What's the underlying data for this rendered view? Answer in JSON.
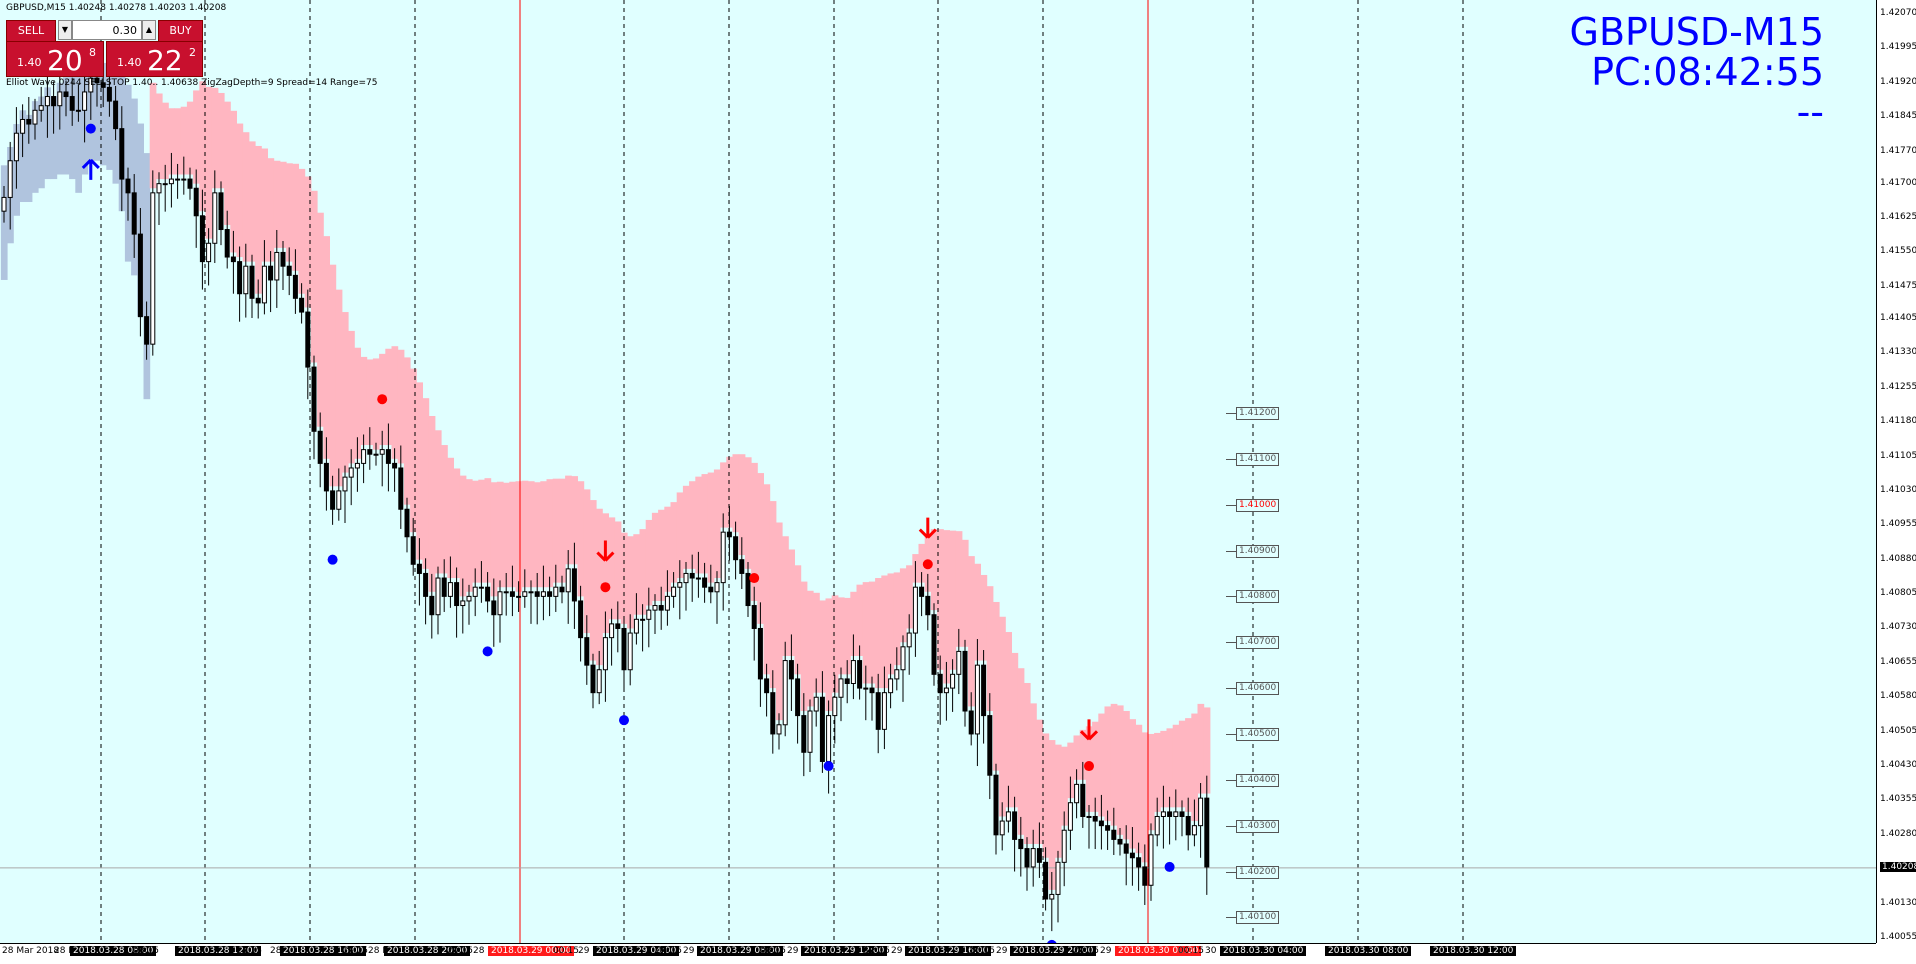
{
  "header": {
    "symbol_line": "GBPUSD,M15  1.40248 1.40278 1.40203 1.40208",
    "indicator_line": "Elliot Wave  0244  SELLSTOP  1.40..  1.40638  ZigZagDepth=9  Spread=14  Range=75"
  },
  "trade_panel": {
    "sell_label": "SELL",
    "buy_label": "BUY",
    "lot": "0.30",
    "sell_small": "1.40",
    "sell_big": "20",
    "sell_sup": "8",
    "buy_small": "1.40",
    "buy_big": "22",
    "buy_sup": "2"
  },
  "overlay": {
    "line1": "GBPUSD-M15",
    "line2": "PC:08:42:55",
    "line3": "--"
  },
  "colors": {
    "background": "#e0ffff",
    "bull_candle": "#ffffff",
    "bear_candle": "#000000",
    "cloud_down": "#ffb6c1",
    "cloud_up": "#b0c4de",
    "marker_red": "#ff0000",
    "marker_blue": "#0000ff",
    "title_blue": "#0000ff"
  },
  "price_axis": {
    "labels": [
      "1.42070",
      "1.41995",
      "1.41920",
      "1.41845",
      "1.41770",
      "1.41700",
      "1.41625",
      "1.41550",
      "1.41475",
      "1.41405",
      "1.41330",
      "1.41255",
      "1.41180",
      "1.41105",
      "1.41030",
      "1.40955",
      "1.40880",
      "1.40805",
      "1.40730",
      "1.40655",
      "1.40580",
      "1.40505",
      "1.40430",
      "1.40355",
      "1.40280",
      "1.40208",
      "1.40130",
      "1.40055"
    ],
    "current": "1.40208"
  },
  "time_axis": {
    "labels": [
      {
        "text": "28 Mar 2018",
        "style": "plain"
      },
      {
        "text": "28 M",
        "style": "plain"
      },
      {
        "text": "2018.03.28 08:00",
        "style": "dark"
      },
      {
        "text": "08:15",
        "style": "plain"
      },
      {
        "text": "28 M",
        "style": "plain"
      },
      {
        "text": "2018.03.28 12:00",
        "style": "dark"
      },
      {
        "text": "12:15",
        "style": "plain"
      },
      {
        "text": "28 M",
        "style": "plain"
      },
      {
        "text": "2018.03.28 16:00",
        "style": "dark"
      },
      {
        "text": "16:15",
        "style": "plain"
      },
      {
        "text": "28 M",
        "style": "plain"
      },
      {
        "text": "2018.03.28 20:00",
        "style": "dark"
      },
      {
        "text": "20:15",
        "style": "plain"
      },
      {
        "text": "28 M",
        "style": "plain"
      },
      {
        "text": "2018.03.29 00:00",
        "style": "red"
      },
      {
        "text": "00:15",
        "style": "plain"
      },
      {
        "text": "29 M",
        "style": "plain"
      },
      {
        "text": "2018.03.29 04:00",
        "style": "dark"
      },
      {
        "text": "04:15",
        "style": "plain"
      },
      {
        "text": "29 M",
        "style": "plain"
      },
      {
        "text": "2018.03.29 08:00",
        "style": "dark"
      },
      {
        "text": "08:15",
        "style": "plain"
      },
      {
        "text": "29 M",
        "style": "plain"
      },
      {
        "text": "2018.03.29 12:00",
        "style": "dark"
      },
      {
        "text": "12:15",
        "style": "plain"
      },
      {
        "text": "29 M",
        "style": "plain"
      },
      {
        "text": "2018.03.29 16:00",
        "style": "dark"
      },
      {
        "text": "16:15",
        "style": "plain"
      },
      {
        "text": "29 M",
        "style": "plain"
      },
      {
        "text": "2018.03.29 20:00",
        "style": "dark"
      },
      {
        "text": "20:15",
        "style": "plain"
      },
      {
        "text": "29 M",
        "style": "plain"
      },
      {
        "text": "2018.03.30 00:00",
        "style": "red"
      },
      {
        "text": "00:15",
        "style": "plain"
      },
      {
        "text": "30 M",
        "style": "plain"
      },
      {
        "text": "2018.03.30 04:00",
        "style": "dark"
      },
      {
        "text": "2018.03.30 08:00",
        "style": "dark"
      },
      {
        "text": "2018.03.30 12:00",
        "style": "dark"
      }
    ]
  },
  "level_boxes": [
    {
      "text": "1.41200",
      "highlight": false
    },
    {
      "text": "1.41100",
      "highlight": false
    },
    {
      "text": "1.41000",
      "highlight": true
    },
    {
      "text": "1.40900",
      "highlight": false
    },
    {
      "text": "1.40800",
      "highlight": false
    },
    {
      "text": "1.40700",
      "highlight": false
    },
    {
      "text": "1.40600",
      "highlight": false
    },
    {
      "text": "1.40500",
      "highlight": false
    },
    {
      "text": "1.40400",
      "highlight": false
    },
    {
      "text": "1.40300",
      "highlight": false
    },
    {
      "text": "1.40200",
      "highlight": false
    },
    {
      "text": "1.40100",
      "highlight": false
    }
  ],
  "chart_data": {
    "type": "candlestick",
    "symbol": "GBPUSD",
    "timeframe": "M15",
    "ylim": [
      1.40055,
      1.4207
    ],
    "closes": [
      1.4167,
      1.4175,
      1.4181,
      1.4184,
      1.4183,
      1.4186,
      1.4187,
      1.4189,
      1.4187,
      1.419,
      1.4189,
      1.4186,
      1.4186,
      1.419,
      1.4193,
      1.4192,
      1.4191,
      1.4188,
      1.4182,
      1.4171,
      1.4168,
      1.4159,
      1.4141,
      1.4135,
      1.4168,
      1.417,
      1.417,
      1.4171,
      1.4171,
      1.4171,
      1.4169,
      1.4163,
      1.4153,
      1.4157,
      1.4168,
      1.416,
      1.4154,
      1.4153,
      1.4146,
      1.4152,
      1.4145,
      1.4144,
      1.4152,
      1.4149,
      1.4155,
      1.4152,
      1.415,
      1.4145,
      1.4142,
      1.413,
      1.4116,
      1.4109,
      1.4103,
      1.4099,
      1.4103,
      1.4106,
      1.4108,
      1.4109,
      1.4112,
      1.4111,
      1.4111,
      1.4112,
      1.4109,
      1.4108,
      1.4099,
      1.4093,
      1.4087,
      1.4085,
      1.408,
      1.4076,
      1.4084,
      1.408,
      1.4083,
      1.4078,
      1.4079,
      1.408,
      1.4082,
      1.4082,
      1.4079,
      1.4076,
      1.4081,
      1.4081,
      1.408,
      1.408,
      1.4081,
      1.4081,
      1.408,
      1.4081,
      1.408,
      1.4082,
      1.4081,
      1.4086,
      1.4079,
      1.4071,
      1.4065,
      1.4059,
      1.4064,
      1.4071,
      1.4074,
      1.4073,
      1.4064,
      1.4072,
      1.4075,
      1.4075,
      1.4077,
      1.4078,
      1.4077,
      1.408,
      1.4082,
      1.4083,
      1.4085,
      1.4084,
      1.4084,
      1.4082,
      1.4081,
      1.4083,
      1.4094,
      1.4093,
      1.4088,
      1.4085,
      1.4078,
      1.4073,
      1.4062,
      1.4059,
      1.405,
      1.4052,
      1.4066,
      1.4062,
      1.4054,
      1.4046,
      1.4055,
      1.4058,
      1.4044,
      1.4054,
      1.4058,
      1.4062,
      1.4061,
      1.4066,
      1.406,
      1.406,
      1.4059,
      1.4051,
      1.4059,
      1.4062,
      1.4064,
      1.4069,
      1.4072,
      1.4082,
      1.408,
      1.4076,
      1.4063,
      1.4059,
      1.406,
      1.4063,
      1.4068,
      1.4055,
      1.405,
      1.4065,
      1.4054,
      1.4041,
      1.4028,
      1.4031,
      1.4033,
      1.4027,
      1.4025,
      1.4021,
      1.4025,
      1.4022,
      1.4014,
      1.4015,
      1.4022,
      1.4029,
      1.4035,
      1.4039,
      1.4032,
      1.4032,
      1.4031,
      1.403,
      1.4029,
      1.4027,
      1.4026,
      1.4024,
      1.4023,
      1.4021,
      1.4017,
      1.4028,
      1.4032,
      1.4033,
      1.4032,
      1.4033,
      1.4032,
      1.4028,
      1.403,
      1.4036,
      1.4021
    ]
  }
}
